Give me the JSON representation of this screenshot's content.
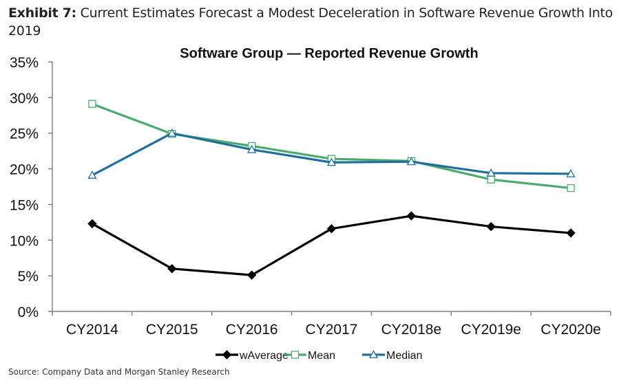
{
  "exhibit": {
    "label": "Exhibit 7:",
    "title": "Current Estimates Forecast a Modest Deceleration in Software Revenue Growth Into 2019"
  },
  "source": "Source: Company Data and Morgan Stanley Research",
  "chart_data": {
    "type": "line",
    "title": "Software Group — Reported Revenue Growth",
    "xlabel": "",
    "ylabel": "",
    "categories": [
      "CY2014",
      "CY2015",
      "CY2016",
      "CY2017",
      "CY2018e",
      "CY2019e",
      "CY2020e"
    ],
    "ylim": [
      0,
      35
    ],
    "yticks": [
      0,
      5,
      10,
      15,
      20,
      25,
      30,
      35
    ],
    "ytick_labels": [
      "0%",
      "5%",
      "10%",
      "15%",
      "20%",
      "25%",
      "30%",
      "35%"
    ],
    "grid": false,
    "legend_position": "bottom",
    "series": [
      {
        "name": "wAverage",
        "color": "#000000",
        "marker": "diamond",
        "values": [
          12.3,
          6.0,
          5.1,
          11.6,
          13.4,
          11.9,
          11.0
        ]
      },
      {
        "name": "Mean",
        "color": "#4caa6e",
        "marker": "square",
        "values": [
          29.1,
          24.9,
          23.2,
          21.4,
          21.1,
          18.5,
          17.3
        ]
      },
      {
        "name": "Median",
        "color": "#1f6e9c",
        "marker": "triangle",
        "values": [
          19.1,
          25.0,
          22.7,
          20.9,
          21.0,
          19.4,
          19.3
        ]
      }
    ]
  }
}
